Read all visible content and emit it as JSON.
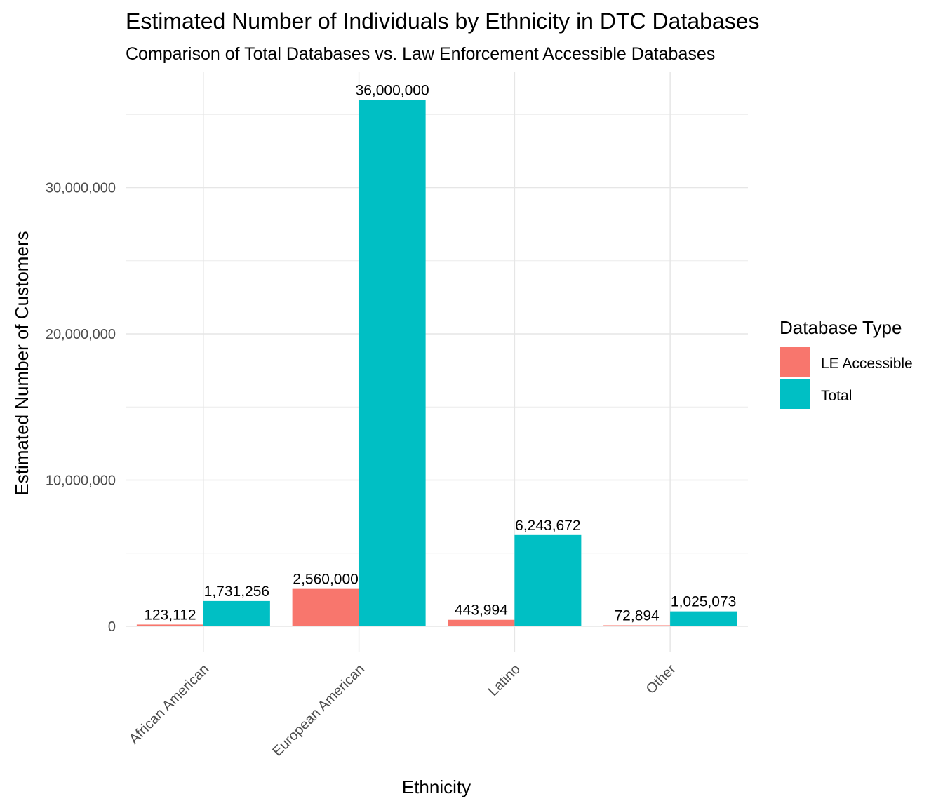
{
  "chart_data": {
    "type": "bar",
    "title": "Estimated Number of Individuals by Ethnicity in DTC Databases",
    "subtitle": "Comparison of Total Databases vs. Law Enforcement Accessible Databases",
    "xlabel": "Ethnicity",
    "ylabel": "Estimated Number of Customers",
    "categories": [
      "African American",
      "European American",
      "Latino",
      "Other"
    ],
    "series": [
      {
        "name": "LE Accessible",
        "color": "#F8766D",
        "values": [
          123112,
          2560000,
          443994,
          72894
        ]
      },
      {
        "name": "Total",
        "color": "#00BFC4",
        "values": [
          1731256,
          36000000,
          6243672,
          1025073
        ]
      }
    ],
    "ylim": [
      -1800000,
      37800000
    ],
    "yticks": [
      0,
      10000000,
      20000000,
      30000000
    ],
    "ytick_labels": [
      "0",
      "10,000,000",
      "20,000,000",
      "30,000,000"
    ],
    "data_labels": [
      [
        "123,112",
        "2,560,000",
        "443,994",
        "72,894"
      ],
      [
        "1,731,256",
        "36,000,000",
        "6,243,672",
        "1,025,073"
      ]
    ],
    "legend": {
      "title": "Database Type",
      "position": "right"
    },
    "grid": true
  }
}
